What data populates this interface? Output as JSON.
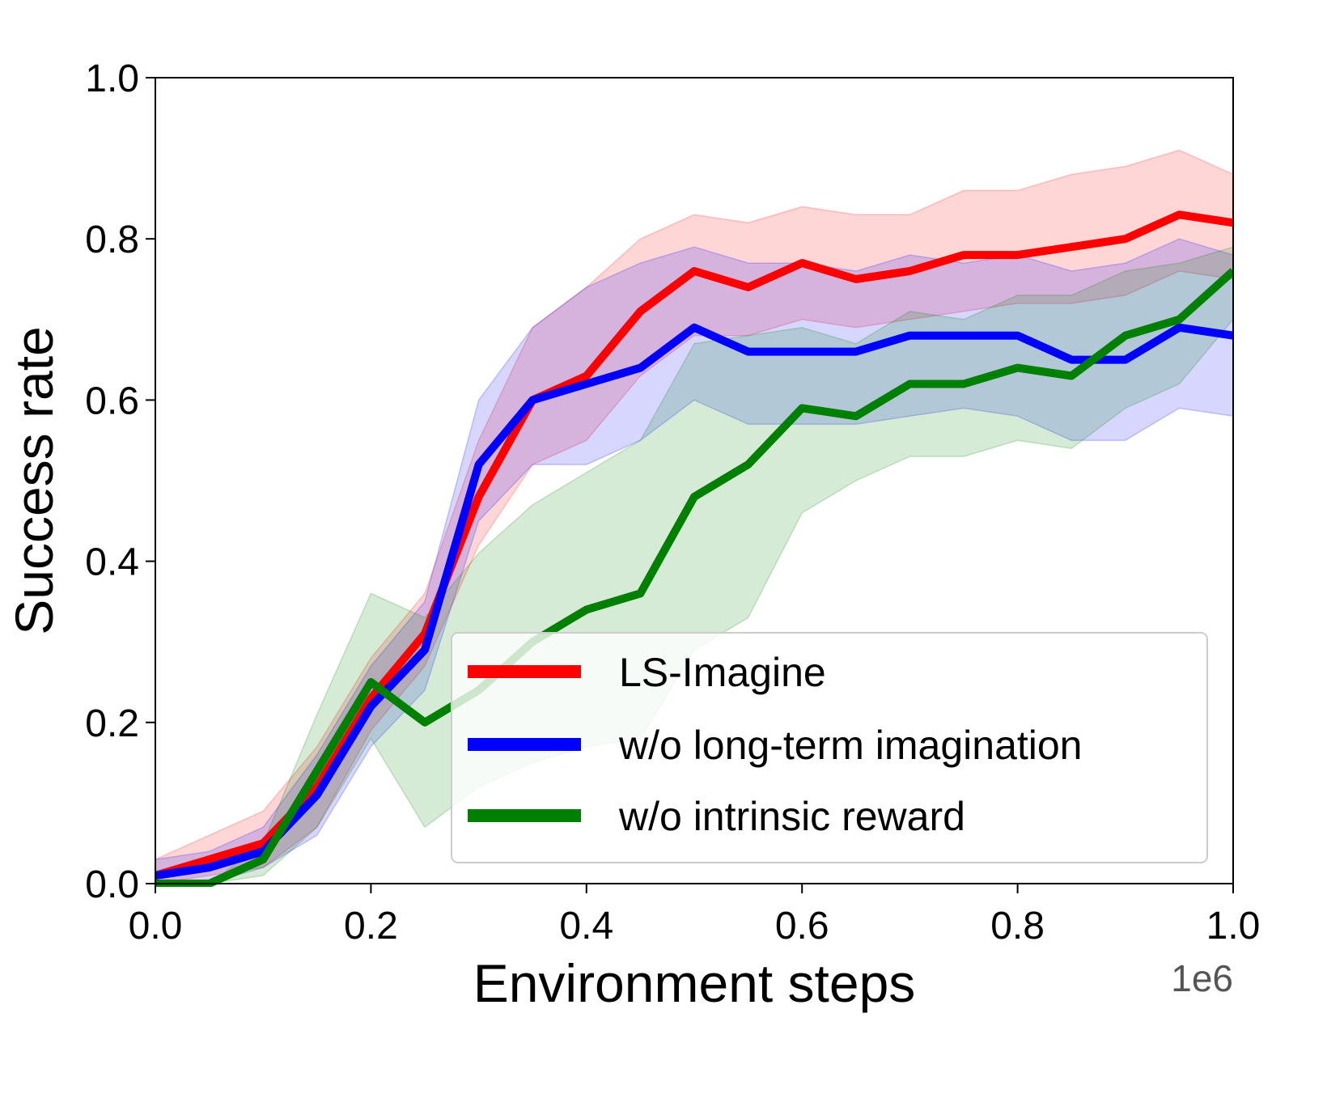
{
  "chart_data": {
    "type": "line",
    "title": "",
    "xlabel": "Environment steps",
    "ylabel": "Success rate",
    "x_offset_label": "1e6",
    "xlim": [
      0.0,
      1.0
    ],
    "ylim": [
      0.0,
      1.0
    ],
    "xticks": [
      0.0,
      0.2,
      0.4,
      0.6,
      0.8,
      1.0
    ],
    "xtick_labels": [
      "0.0",
      "0.2",
      "0.4",
      "0.6",
      "0.8",
      "1.0"
    ],
    "yticks": [
      0.0,
      0.2,
      0.4,
      0.6,
      0.8,
      1.0
    ],
    "ytick_labels": [
      "0.0",
      "0.2",
      "0.4",
      "0.6",
      "0.8",
      "1.0"
    ],
    "grid": false,
    "legend_position": "lower-right",
    "x": [
      0.0,
      0.05,
      0.1,
      0.15,
      0.2,
      0.25,
      0.3,
      0.35,
      0.4,
      0.45,
      0.5,
      0.55,
      0.6,
      0.65,
      0.7,
      0.75,
      0.8,
      0.85,
      0.9,
      0.95,
      1.0
    ],
    "series": [
      {
        "name": "LS-Imagine",
        "color": "#ff0000",
        "values": [
          0.01,
          0.03,
          0.05,
          0.12,
          0.23,
          0.31,
          0.48,
          0.6,
          0.63,
          0.71,
          0.76,
          0.74,
          0.77,
          0.75,
          0.76,
          0.78,
          0.78,
          0.79,
          0.8,
          0.83,
          0.82
        ],
        "lower": [
          0.0,
          0.01,
          0.02,
          0.07,
          0.19,
          0.27,
          0.42,
          0.52,
          0.55,
          0.63,
          0.68,
          0.68,
          0.7,
          0.69,
          0.7,
          0.71,
          0.72,
          0.72,
          0.73,
          0.76,
          0.75
        ],
        "upper": [
          0.03,
          0.06,
          0.09,
          0.17,
          0.28,
          0.36,
          0.55,
          0.69,
          0.74,
          0.8,
          0.83,
          0.82,
          0.84,
          0.83,
          0.83,
          0.86,
          0.86,
          0.88,
          0.89,
          0.91,
          0.88
        ]
      },
      {
        "name": "w/o long-term imagination",
        "color": "#0000ff",
        "values": [
          0.01,
          0.02,
          0.04,
          0.11,
          0.22,
          0.29,
          0.52,
          0.6,
          0.62,
          0.64,
          0.69,
          0.66,
          0.66,
          0.66,
          0.68,
          0.68,
          0.68,
          0.65,
          0.65,
          0.69,
          0.68
        ],
        "lower": [
          0.0,
          0.0,
          0.02,
          0.06,
          0.17,
          0.24,
          0.45,
          0.52,
          0.52,
          0.55,
          0.6,
          0.57,
          0.57,
          0.57,
          0.58,
          0.59,
          0.58,
          0.55,
          0.55,
          0.59,
          0.58
        ],
        "upper": [
          0.03,
          0.04,
          0.07,
          0.16,
          0.27,
          0.35,
          0.6,
          0.69,
          0.74,
          0.77,
          0.79,
          0.77,
          0.77,
          0.76,
          0.78,
          0.77,
          0.78,
          0.76,
          0.77,
          0.8,
          0.78
        ]
      },
      {
        "name": "w/o intrinsic reward",
        "color": "#008000",
        "values": [
          0.0,
          0.0,
          0.03,
          0.14,
          0.25,
          0.2,
          0.24,
          0.3,
          0.34,
          0.36,
          0.48,
          0.52,
          0.59,
          0.58,
          0.62,
          0.62,
          0.64,
          0.63,
          0.68,
          0.7,
          0.76
        ],
        "lower": [
          0.0,
          0.0,
          0.01,
          0.07,
          0.18,
          0.07,
          0.12,
          0.15,
          0.17,
          0.18,
          0.29,
          0.33,
          0.46,
          0.5,
          0.53,
          0.53,
          0.55,
          0.54,
          0.59,
          0.62,
          0.7
        ],
        "upper": [
          0.0,
          0.0,
          0.05,
          0.21,
          0.36,
          0.33,
          0.41,
          0.47,
          0.51,
          0.55,
          0.67,
          0.68,
          0.69,
          0.67,
          0.71,
          0.7,
          0.73,
          0.73,
          0.76,
          0.77,
          0.79
        ]
      }
    ]
  }
}
